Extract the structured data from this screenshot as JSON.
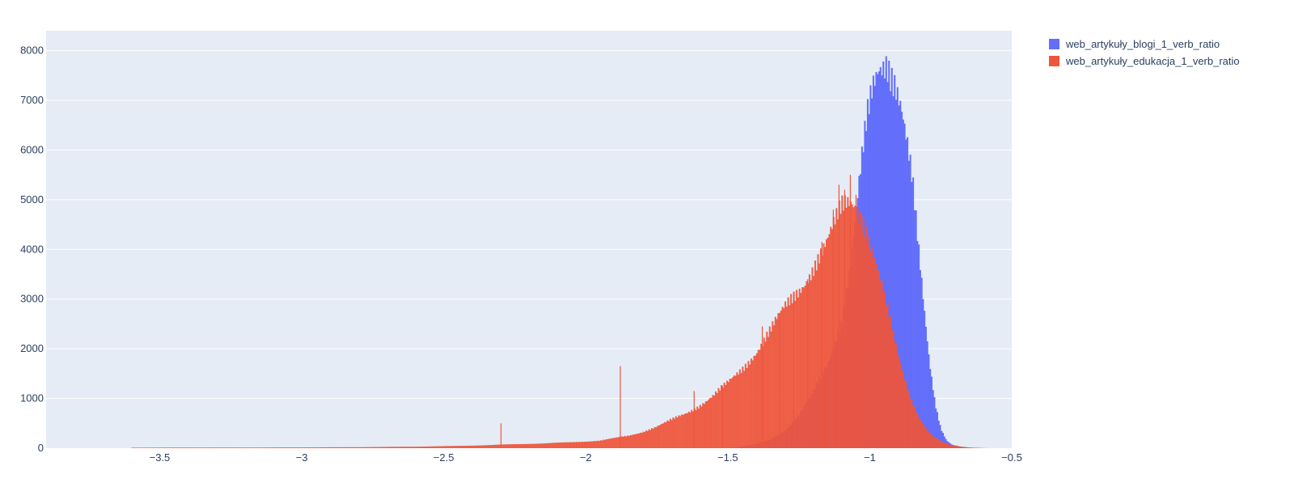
{
  "chart_data": {
    "type": "bar",
    "subtype": "overlaid-histogram",
    "title": "",
    "xlabel": "",
    "ylabel": "",
    "xlim": [
      -3.9,
      -0.5
    ],
    "ylim": [
      0,
      8400
    ],
    "x_ticks": [
      -3.5,
      -3,
      -2.5,
      -2,
      -1.5,
      -1,
      -0.5
    ],
    "x_tick_labels": [
      "−3.5",
      "−3",
      "−2.5",
      "−2",
      "−1.5",
      "−1",
      "−0.5"
    ],
    "y_ticks": [
      0,
      1000,
      2000,
      3000,
      4000,
      5000,
      6000,
      7000,
      8000
    ],
    "y_tick_labels": [
      "0",
      "1000",
      "2000",
      "3000",
      "4000",
      "5000",
      "6000",
      "7000",
      "8000"
    ],
    "grid": true,
    "legend_position": "top-right",
    "plot_background": "#e5ecf6",
    "series": [
      {
        "name": "web_artykuły_blogi_1_verb_ratio",
        "color": "#636efa",
        "opacity": 1,
        "points": [
          [
            -1.5,
            0
          ],
          [
            -1.45,
            30
          ],
          [
            -1.4,
            80
          ],
          [
            -1.35,
            180
          ],
          [
            -1.3,
            350
          ],
          [
            -1.25,
            650
          ],
          [
            -1.2,
            1100
          ],
          [
            -1.15,
            1700
          ],
          [
            -1.1,
            2600
          ],
          [
            -1.07,
            3600
          ],
          [
            -1.05,
            4600
          ],
          [
            -1.03,
            5600
          ],
          [
            -1.01,
            6500
          ],
          [
            -0.99,
            7150
          ],
          [
            -0.97,
            7600
          ],
          [
            -0.95,
            7800
          ],
          [
            -0.94,
            7900
          ],
          [
            -0.93,
            7750
          ],
          [
            -0.91,
            7500
          ],
          [
            -0.89,
            7000
          ],
          [
            -0.87,
            6200
          ],
          [
            -0.85,
            5300
          ],
          [
            -0.83,
            4000
          ],
          [
            -0.81,
            2800
          ],
          [
            -0.79,
            1700
          ],
          [
            -0.77,
            900
          ],
          [
            -0.75,
            400
          ],
          [
            -0.73,
            160
          ],
          [
            -0.71,
            70
          ],
          [
            -0.68,
            30
          ],
          [
            -0.65,
            12
          ],
          [
            -0.62,
            5
          ],
          [
            -0.58,
            0
          ]
        ]
      },
      {
        "name": "web_artykuły_edukacja_1_verb_ratio",
        "color": "#ef553b",
        "opacity": 0.92,
        "points": [
          [
            -3.6,
            10
          ],
          [
            -3.4,
            12
          ],
          [
            -3.2,
            12
          ],
          [
            -3.0,
            15
          ],
          [
            -2.8,
            20
          ],
          [
            -2.6,
            30
          ],
          [
            -2.45,
            45
          ],
          [
            -2.35,
            60
          ],
          [
            -2.25,
            80
          ],
          [
            -2.15,
            95
          ],
          [
            -2.05,
            120
          ],
          [
            -1.95,
            150
          ],
          [
            -1.85,
            250
          ],
          [
            -1.8,
            330
          ],
          [
            -1.75,
            430
          ],
          [
            -1.7,
            560
          ],
          [
            -1.65,
            700
          ],
          [
            -1.6,
            860
          ],
          [
            -1.55,
            1050
          ],
          [
            -1.5,
            1300
          ],
          [
            -1.45,
            1600
          ],
          [
            -1.4,
            1950
          ],
          [
            -1.35,
            2350
          ],
          [
            -1.3,
            2800
          ],
          [
            -1.25,
            3200
          ],
          [
            -1.2,
            3650
          ],
          [
            -1.15,
            4100
          ],
          [
            -1.12,
            4500
          ],
          [
            -1.1,
            4800
          ],
          [
            -1.08,
            4950
          ],
          [
            -1.06,
            5000
          ],
          [
            -1.04,
            4850
          ],
          [
            -1.02,
            4600
          ],
          [
            -1.0,
            4200
          ],
          [
            -0.98,
            3750
          ],
          [
            -0.96,
            3300
          ],
          [
            -0.94,
            2800
          ],
          [
            -0.92,
            2300
          ],
          [
            -0.9,
            1850
          ],
          [
            -0.88,
            1450
          ],
          [
            -0.86,
            1100
          ],
          [
            -0.84,
            800
          ],
          [
            -0.82,
            560
          ],
          [
            -0.8,
            380
          ],
          [
            -0.78,
            250
          ],
          [
            -0.75,
            140
          ],
          [
            -0.72,
            70
          ],
          [
            -0.68,
            30
          ],
          [
            -0.64,
            10
          ],
          [
            -0.6,
            0
          ]
        ],
        "spikes": [
          [
            -2.3,
            500
          ],
          [
            -1.88,
            1650
          ],
          [
            -1.62,
            1150
          ],
          [
            -1.52,
            1250
          ],
          [
            -1.38,
            2450
          ],
          [
            -1.32,
            2650
          ],
          [
            -1.27,
            3100
          ],
          [
            -1.22,
            3400
          ],
          [
            -1.17,
            4150
          ],
          [
            -1.13,
            4800
          ],
          [
            -1.11,
            5300
          ],
          [
            -1.09,
            5200
          ],
          [
            -1.07,
            5500
          ],
          [
            -1.05,
            5100
          ],
          [
            -1.03,
            4700
          ]
        ]
      }
    ]
  }
}
